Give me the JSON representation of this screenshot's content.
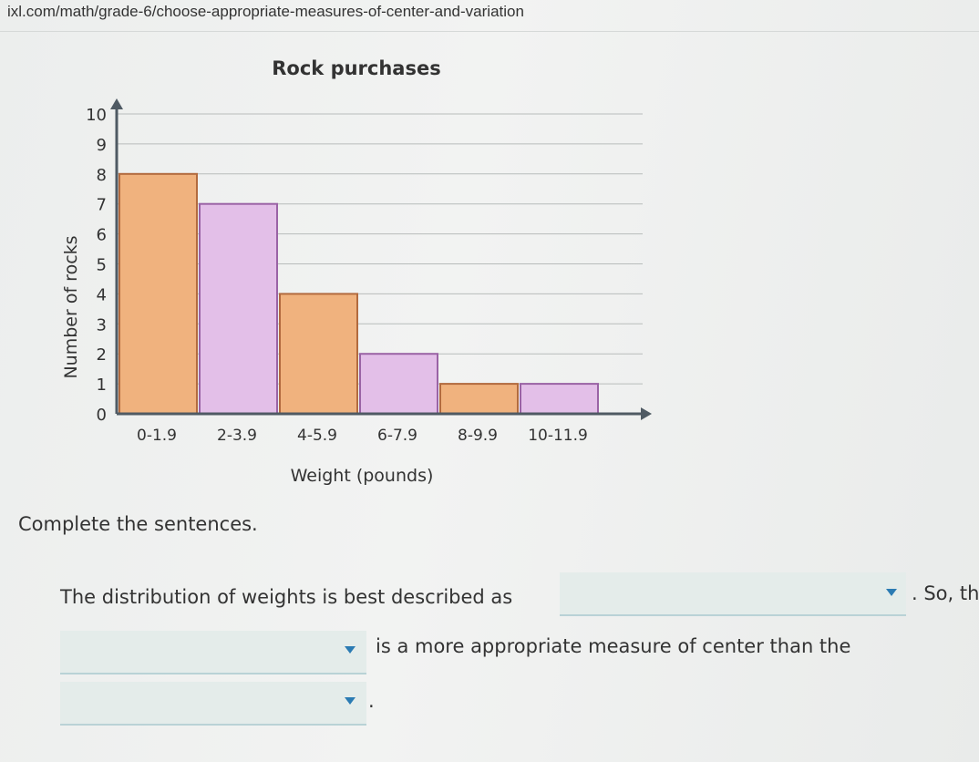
{
  "browser": {
    "url": "ixl.com/math/grade-6/choose-appropriate-measures-of-center-and-variation"
  },
  "chart_data": {
    "type": "bar",
    "title": "Rock purchases",
    "xlabel": "Weight (pounds)",
    "ylabel": "Number of rocks",
    "categories": [
      "0-1.9",
      "2-3.9",
      "4-5.9",
      "6-7.9",
      "8-9.9",
      "10-11.9"
    ],
    "values": [
      8,
      7,
      4,
      2,
      1,
      1
    ],
    "ylim": [
      0,
      10
    ],
    "yticks": [
      "0",
      "1",
      "2",
      "3",
      "4",
      "5",
      "6",
      "7",
      "8",
      "9",
      "10"
    ],
    "grid": true,
    "colors": [
      "#f0b27e",
      "#e3bfe8"
    ],
    "border_colors": [
      "#b26a3e",
      "#9a63a5"
    ]
  },
  "question": {
    "prompt": "Complete the sentences.",
    "sentence1_before": "The distribution of weights is best described as",
    "sentence1_after": ". So, th",
    "sentence2_after": "is a more appropriate measure of center than the",
    "sentence3_after": "."
  },
  "icons": {
    "dropdown_arrow": "caret-down-icon"
  }
}
